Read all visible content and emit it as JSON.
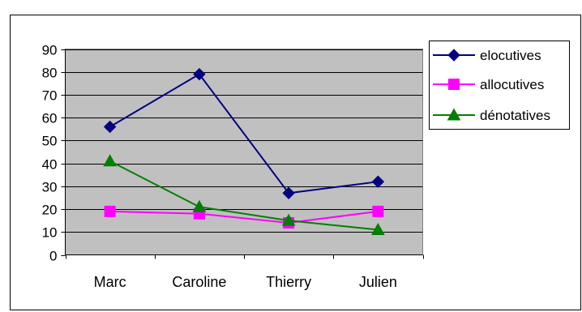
{
  "chart_data": {
    "type": "line",
    "categories": [
      "Marc",
      "Caroline",
      "Thierry",
      "Julien"
    ],
    "ylim": [
      0,
      90
    ],
    "yticks": [
      0,
      10,
      20,
      30,
      40,
      50,
      60,
      70,
      80,
      90
    ],
    "grid": true,
    "legend": "right",
    "plot_background": "#c0c0c0",
    "series": [
      {
        "name": "elocutives",
        "values": [
          56,
          79,
          27,
          32
        ],
        "color": "#000080",
        "marker": "diamond"
      },
      {
        "name": "allocutives",
        "values": [
          19,
          18,
          14,
          19
        ],
        "color": "#ff00ff",
        "marker": "square"
      },
      {
        "name": "dénotatives",
        "values": [
          41,
          21,
          15,
          11
        ],
        "color": "#008000",
        "marker": "triangle"
      }
    ]
  }
}
